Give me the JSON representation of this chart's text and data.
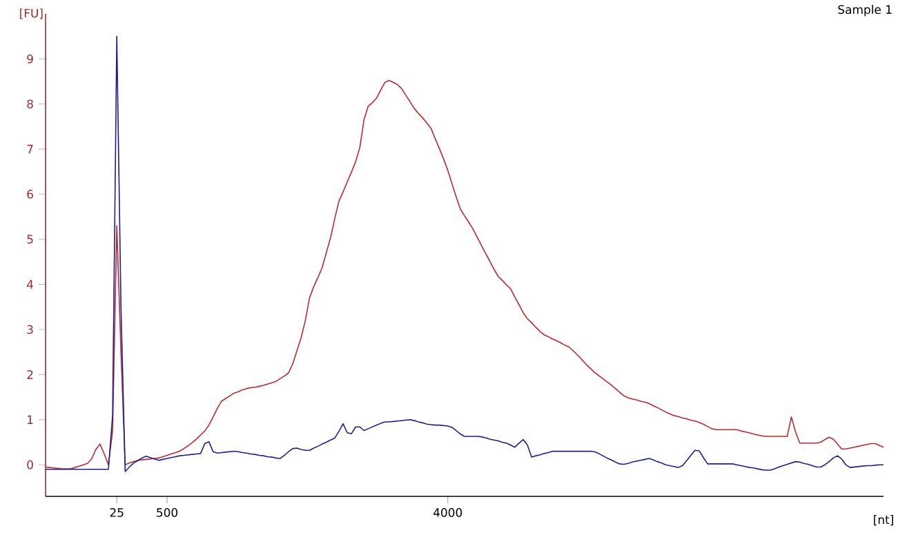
{
  "chart_data": {
    "type": "line",
    "title": "Sample 1",
    "xlabel": "[nt]",
    "ylabel": "[FU]",
    "ylim": [
      -0.7,
      10
    ],
    "yticks": [
      0,
      1,
      2,
      3,
      4,
      5,
      6,
      7,
      8,
      9
    ],
    "categories": [
      null,
      null,
      null,
      null,
      null,
      null,
      null,
      null,
      null,
      null,
      null,
      null,
      null,
      null,
      null,
      null,
      null,
      "25",
      null,
      null,
      null,
      null,
      null,
      null,
      null,
      null,
      null,
      null,
      null,
      "500",
      null,
      null,
      null,
      null,
      null,
      null,
      null,
      null,
      null,
      null,
      null,
      null,
      null,
      null,
      null,
      null,
      null,
      null,
      null,
      null,
      null,
      null,
      null,
      null,
      null,
      null,
      null,
      null,
      null,
      null,
      null,
      null,
      null,
      null,
      null,
      null,
      null,
      null,
      null,
      null,
      null,
      null,
      null,
      null,
      null,
      null,
      null,
      null,
      null,
      null,
      null,
      null,
      null,
      null,
      null,
      null,
      null,
      null,
      null,
      null,
      null,
      null,
      null,
      null,
      null,
      null,
      "4000",
      null,
      null,
      null,
      null,
      null,
      null,
      null,
      null,
      null,
      null,
      null,
      null,
      null,
      null,
      null,
      null,
      null,
      null,
      null,
      null,
      null,
      null,
      null,
      null,
      null,
      null,
      null,
      null,
      null,
      null,
      null,
      null,
      null,
      null,
      null,
      null,
      null,
      null,
      null,
      null,
      null,
      null,
      null,
      null,
      null,
      null,
      null,
      null,
      null,
      null,
      null,
      null,
      null,
      null,
      null,
      null,
      null,
      null,
      null,
      null,
      null,
      null,
      null,
      null,
      null,
      null,
      null,
      null,
      null,
      null,
      null,
      null,
      null,
      null,
      null,
      null,
      null,
      null,
      null,
      null,
      null,
      null,
      null,
      null,
      null,
      null,
      null,
      null,
      null,
      null,
      null,
      null,
      null,
      null,
      null,
      null,
      null,
      null,
      null,
      null,
      null,
      null,
      null,
      null
    ],
    "series": [
      {
        "color": "#c0282d",
        "values": [
          -0.05,
          -0.06,
          -0.07,
          -0.08,
          -0.09,
          -0.09,
          -0.09,
          -0.06,
          -0.03,
          0.0,
          0.03,
          0.13,
          0.34,
          0.46,
          0.24,
          0.0,
          0.75,
          5.3,
          2.5,
          0.0,
          0.04,
          0.07,
          0.1,
          0.11,
          0.12,
          0.13,
          0.14,
          0.15,
          0.18,
          0.21,
          0.24,
          0.27,
          0.3,
          0.36,
          0.42,
          0.49,
          0.57,
          0.66,
          0.75,
          0.88,
          1.06,
          1.25,
          1.41,
          1.47,
          1.53,
          1.59,
          1.62,
          1.66,
          1.69,
          1.71,
          1.72,
          1.74,
          1.76,
          1.79,
          1.82,
          1.85,
          1.91,
          1.97,
          2.04,
          2.24,
          2.53,
          2.82,
          3.2,
          3.7,
          3.95,
          4.15,
          4.37,
          4.7,
          5.03,
          5.45,
          5.84,
          6.05,
          6.27,
          6.49,
          6.72,
          7.03,
          7.65,
          7.95,
          8.03,
          8.13,
          8.31,
          8.48,
          8.52,
          8.48,
          8.43,
          8.34,
          8.19,
          8.05,
          7.9,
          7.79,
          7.69,
          7.58,
          7.46,
          7.23,
          7.01,
          6.78,
          6.53,
          6.23,
          5.94,
          5.67,
          5.52,
          5.38,
          5.23,
          5.05,
          4.87,
          4.69,
          4.52,
          4.34,
          4.18,
          4.09,
          3.99,
          3.9,
          3.72,
          3.55,
          3.37,
          3.24,
          3.15,
          3.05,
          2.96,
          2.88,
          2.84,
          2.79,
          2.75,
          2.7,
          2.65,
          2.61,
          2.52,
          2.43,
          2.33,
          2.23,
          2.14,
          2.05,
          1.98,
          1.91,
          1.84,
          1.77,
          1.69,
          1.61,
          1.53,
          1.49,
          1.46,
          1.44,
          1.41,
          1.39,
          1.36,
          1.31,
          1.27,
          1.22,
          1.17,
          1.13,
          1.09,
          1.07,
          1.04,
          1.02,
          0.99,
          0.97,
          0.94,
          0.9,
          0.85,
          0.8,
          0.78,
          0.78,
          0.78,
          0.78,
          0.78,
          0.78,
          0.75,
          0.73,
          0.71,
          0.68,
          0.66,
          0.64,
          0.63,
          0.63,
          0.63,
          0.63,
          0.63,
          0.63,
          1.06,
          0.73,
          0.48,
          0.48,
          0.48,
          0.48,
          0.48,
          0.5,
          0.56,
          0.61,
          0.57,
          0.46,
          0.35,
          0.35,
          0.37,
          0.39,
          0.41,
          0.43,
          0.45,
          0.47,
          0.47,
          0.43,
          0.39
        ]
      },
      {
        "color": "#1c1c96",
        "values": [
          -0.1,
          -0.1,
          -0.1,
          -0.1,
          -0.1,
          -0.1,
          -0.1,
          -0.1,
          -0.1,
          -0.1,
          -0.1,
          -0.1,
          -0.1,
          -0.1,
          -0.1,
          -0.1,
          1.1,
          9.5,
          3.5,
          -0.15,
          -0.05,
          0.04,
          0.09,
          0.15,
          0.19,
          0.16,
          0.13,
          0.1,
          0.12,
          0.14,
          0.16,
          0.18,
          0.2,
          0.21,
          0.22,
          0.23,
          0.24,
          0.25,
          0.47,
          0.51,
          0.29,
          0.26,
          0.27,
          0.28,
          0.29,
          0.3,
          0.29,
          0.27,
          0.26,
          0.24,
          0.23,
          0.21,
          0.2,
          0.18,
          0.17,
          0.15,
          0.14,
          0.21,
          0.29,
          0.36,
          0.37,
          0.34,
          0.32,
          0.32,
          0.37,
          0.41,
          0.46,
          0.5,
          0.55,
          0.59,
          0.74,
          0.91,
          0.71,
          0.69,
          0.84,
          0.84,
          0.76,
          0.8,
          0.84,
          0.88,
          0.92,
          0.95,
          0.95,
          0.96,
          0.97,
          0.98,
          0.99,
          1.0,
          0.98,
          0.95,
          0.93,
          0.9,
          0.89,
          0.88,
          0.88,
          0.87,
          0.86,
          0.83,
          0.76,
          0.68,
          0.63,
          0.63,
          0.63,
          0.63,
          0.62,
          0.6,
          0.57,
          0.55,
          0.53,
          0.5,
          0.48,
          0.44,
          0.39,
          0.48,
          0.56,
          0.44,
          0.17,
          0.2,
          0.22,
          0.25,
          0.27,
          0.3,
          0.3,
          0.3,
          0.3,
          0.3,
          0.3,
          0.3,
          0.3,
          0.3,
          0.3,
          0.29,
          0.25,
          0.2,
          0.15,
          0.11,
          0.06,
          0.02,
          0.01,
          0.03,
          0.06,
          0.08,
          0.1,
          0.12,
          0.14,
          0.11,
          0.07,
          0.04,
          0.0,
          -0.02,
          -0.04,
          -0.06,
          -0.02,
          0.09,
          0.21,
          0.32,
          0.31,
          0.16,
          0.02,
          0.02,
          0.02,
          0.02,
          0.02,
          0.02,
          0.02,
          0.0,
          -0.02,
          -0.04,
          -0.06,
          -0.07,
          -0.09,
          -0.11,
          -0.12,
          -0.12,
          -0.09,
          -0.05,
          -0.02,
          0.01,
          0.04,
          0.07,
          0.06,
          0.03,
          0.01,
          -0.02,
          -0.05,
          -0.05,
          0.0,
          0.07,
          0.15,
          0.2,
          0.13,
          0.0,
          -0.06,
          -0.05,
          -0.04,
          -0.03,
          -0.02,
          -0.02,
          -0.01,
          0.0,
          0.0
        ]
      }
    ]
  }
}
